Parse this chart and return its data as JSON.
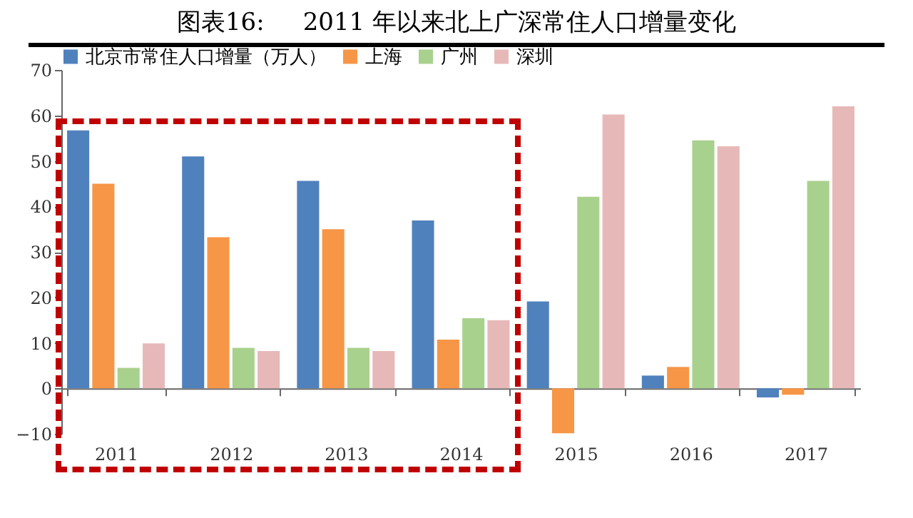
{
  "chart_data": {
    "type": "bar",
    "title": "图表16:     2011 年以来北上广深常住人口增量变化",
    "categories": [
      "2011",
      "2012",
      "2013",
      "2014",
      "2015",
      "2016",
      "2017"
    ],
    "series": [
      {
        "name": "北京市常住人口增量（万人）",
        "color": "#4f81bd",
        "values": [
          56.7,
          51,
          45.6,
          36.9,
          19.1,
          2.8,
          -2.0
        ]
      },
      {
        "name": "上海",
        "color": "#f79646",
        "values": [
          45,
          33.2,
          35,
          10.7,
          -9.9,
          4.7,
          -1.4
        ]
      },
      {
        "name": "广州",
        "color": "#a9d18e",
        "values": [
          4.5,
          8.9,
          8.9,
          15.4,
          42.1,
          54.5,
          45.6
        ]
      },
      {
        "name": "深圳",
        "color": "#e6b9b8",
        "values": [
          9.9,
          8.2,
          8.2,
          15,
          60.2,
          53.2,
          62
        ]
      }
    ],
    "ylim": [
      -10,
      70
    ],
    "yticks": [
      -10,
      0,
      10,
      20,
      30,
      40,
      50,
      60,
      70
    ],
    "legend": "top"
  }
}
